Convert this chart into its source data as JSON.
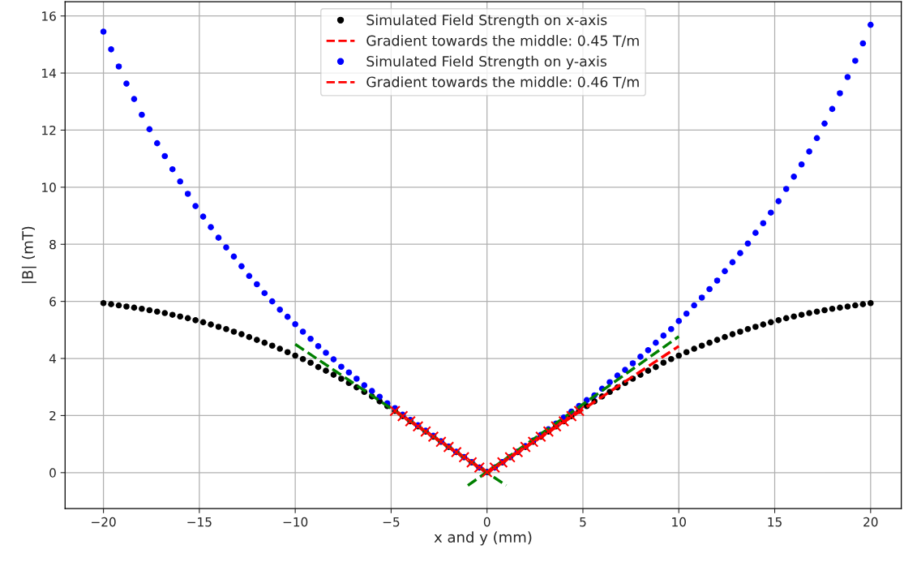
{
  "chart_data": {
    "type": "scatter",
    "xlabel": "x and y (mm)",
    "ylabel": "|B| (mT)",
    "xlim": [
      -22,
      21.6
    ],
    "ylim": [
      -1.26,
      16.5
    ],
    "xticks": [
      {
        "value": -20,
        "label": "−20"
      },
      {
        "value": -15,
        "label": "−15"
      },
      {
        "value": -10,
        "label": "−10"
      },
      {
        "value": -5,
        "label": "−5"
      },
      0,
      5,
      10,
      15,
      20
    ],
    "yticks": [
      0,
      2,
      4,
      6,
      8,
      10,
      12,
      14,
      16
    ],
    "grid": true,
    "legend": "top",
    "marker": "circle",
    "x": [
      -20,
      -19.6,
      -19.2,
      -18.8,
      -18.4,
      -18,
      -17.6,
      -17.2,
      -16.8,
      -16.4,
      -16,
      -15.6,
      -15.2,
      -14.8,
      -14.4,
      -14,
      -13.6,
      -13.2,
      -12.8,
      -12.4,
      -12,
      -11.6,
      -11.2,
      -10.8,
      -10.4,
      -10,
      -9.6,
      -9.2,
      -8.8,
      -8.4,
      -8,
      -7.6,
      -7.2,
      -6.8,
      -6.4,
      -6,
      -5.6,
      -5.2,
      -4.8,
      -4.4,
      -4,
      -3.6,
      -3.2,
      -2.8,
      -2.4,
      -2,
      -1.6,
      -1.2,
      -0.8,
      -0.4,
      0,
      0.4,
      0.8,
      1.2,
      1.6,
      2,
      2.4,
      2.8,
      3.2,
      3.6,
      4,
      4.4,
      4.8,
      5.2,
      5.6,
      6,
      6.4,
      6.8,
      7.2,
      7.6,
      8,
      8.4,
      8.8,
      9.2,
      9.6,
      10,
      10.4,
      10.8,
      11.2,
      11.6,
      12,
      12.4,
      12.8,
      13.2,
      13.6,
      14,
      14.4,
      14.8,
      15.2,
      15.6,
      16,
      16.4,
      16.8,
      17.2,
      17.6,
      18,
      18.4,
      18.8,
      19.2,
      19.6,
      20
    ],
    "series": [
      {
        "name": "Simulated Field Strength on x-axis",
        "color": "#000000",
        "values": [
          5.94,
          5.9,
          5.86,
          5.82,
          5.78,
          5.74,
          5.69,
          5.64,
          5.59,
          5.53,
          5.47,
          5.41,
          5.34,
          5.27,
          5.19,
          5.11,
          5.03,
          4.94,
          4.85,
          4.75,
          4.65,
          4.55,
          4.45,
          4.34,
          4.22,
          4.1,
          3.98,
          3.85,
          3.7,
          3.57,
          3.43,
          3.29,
          3.14,
          2.99,
          2.83,
          2.67,
          2.5,
          2.33,
          2.16,
          1.98,
          1.8,
          1.62,
          1.44,
          1.26,
          1.08,
          0.9,
          0.72,
          0.54,
          0.36,
          0.18,
          0.02,
          0.18,
          0.36,
          0.54,
          0.72,
          0.9,
          1.08,
          1.26,
          1.44,
          1.62,
          1.8,
          1.98,
          2.16,
          2.33,
          2.5,
          2.67,
          2.83,
          2.99,
          3.14,
          3.29,
          3.43,
          3.57,
          3.7,
          3.85,
          3.98,
          4.1,
          4.22,
          4.34,
          4.45,
          4.55,
          4.65,
          4.75,
          4.85,
          4.94,
          5.03,
          5.11,
          5.19,
          5.27,
          5.34,
          5.41,
          5.47,
          5.53,
          5.59,
          5.64,
          5.69,
          5.74,
          5.78,
          5.82,
          5.86,
          5.9,
          5.94
        ]
      },
      {
        "name": "Gradient towards the middle: 0.45 T/m",
        "type": "line",
        "color": "#ff0000",
        "line_style": "dashed",
        "marker": "none",
        "x": [
          0,
          10
        ],
        "values": [
          0,
          4.43
        ]
      },
      {
        "name": "Simulated Field Strength on y-axis",
        "color": "#0000ff",
        "values": [
          15.45,
          14.83,
          14.23,
          13.63,
          13.09,
          12.54,
          12.03,
          11.54,
          11.09,
          10.63,
          10.2,
          9.77,
          9.34,
          8.97,
          8.6,
          8.23,
          7.89,
          7.57,
          7.23,
          6.89,
          6.6,
          6.29,
          6.0,
          5.71,
          5.46,
          5.2,
          4.94,
          4.69,
          4.43,
          4.2,
          3.97,
          3.71,
          3.51,
          3.29,
          3.06,
          2.86,
          2.66,
          2.43,
          2.26,
          2.03,
          1.85,
          1.66,
          1.47,
          1.29,
          1.1,
          0.92,
          0.73,
          0.55,
          0.37,
          0.18,
          0.02,
          0.18,
          0.37,
          0.55,
          0.74,
          0.93,
          1.12,
          1.32,
          1.52,
          1.72,
          1.93,
          2.14,
          2.34,
          2.54,
          2.71,
          2.94,
          3.17,
          3.4,
          3.6,
          3.83,
          4.06,
          4.29,
          4.55,
          4.8,
          5.03,
          5.31,
          5.57,
          5.86,
          6.13,
          6.43,
          6.73,
          7.06,
          7.37,
          7.69,
          8.03,
          8.4,
          8.74,
          9.11,
          9.51,
          9.94,
          10.37,
          10.8,
          11.25,
          11.72,
          12.23,
          12.74,
          13.29,
          13.86,
          14.43,
          15.04,
          15.69
        ]
      },
      {
        "name": "Gradient towards the middle: 0.46 T/m",
        "type": "line",
        "color": "#ff0000",
        "line_style": "dashed",
        "marker": "none",
        "x": [
          -4.8,
          0
        ],
        "values": [
          2.16,
          0
        ]
      },
      {
        "type": "line",
        "color": "#008000",
        "line_style": "dashed",
        "marker": "none",
        "x": [
          -10,
          1
        ],
        "values": [
          4.5,
          -0.45
        ]
      },
      {
        "type": "line",
        "color": "#008000",
        "line_style": "dashed",
        "marker": "none",
        "x": [
          -1,
          10
        ],
        "values": [
          -0.45,
          4.77
        ]
      },
      {
        "color": "#ff0000",
        "marker": "cross",
        "x": [
          -4.8,
          -4.4,
          -4,
          -3.6,
          -3.2,
          -2.8,
          -2.4,
          -2,
          -1.6,
          -1.2,
          -0.8,
          -0.4,
          0,
          0.4,
          0.8,
          1.2,
          1.6,
          2,
          2.4,
          2.8,
          3.2,
          3.6,
          4,
          4.4,
          4.8
        ],
        "values": [
          2.16,
          1.98,
          1.8,
          1.62,
          1.44,
          1.26,
          1.08,
          0.9,
          0.72,
          0.54,
          0.36,
          0.18,
          0.02,
          0.18,
          0.36,
          0.54,
          0.72,
          0.9,
          1.08,
          1.26,
          1.44,
          1.62,
          1.8,
          1.98,
          2.16
        ]
      }
    ]
  }
}
